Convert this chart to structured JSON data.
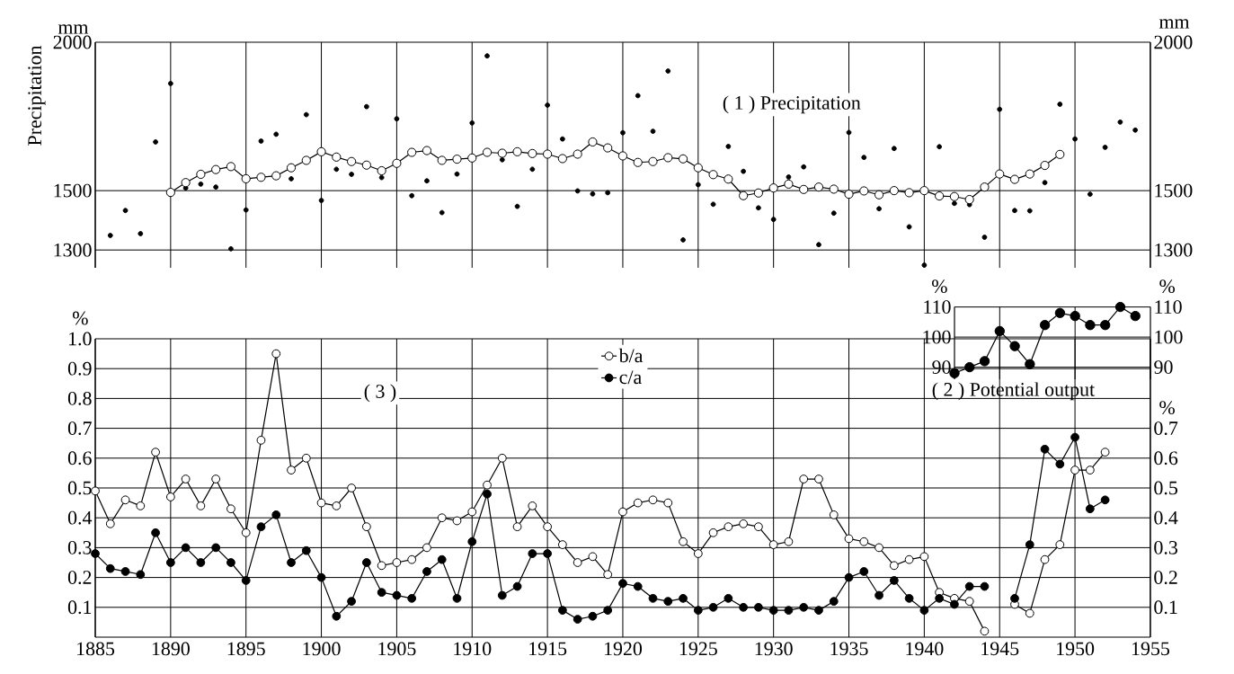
{
  "chart_data": [
    {
      "type": "line",
      "title": "( 1 ) Precipitation",
      "ylabel": "Precipitation",
      "y2label": "mm",
      "annotations": [
        "mm"
      ],
      "xlim": [
        1885,
        1955
      ],
      "xticks": [
        1885,
        1890,
        1895,
        1900,
        1905,
        1910,
        1915,
        1920,
        1925,
        1930,
        1935,
        1940,
        1945,
        1950,
        1955
      ],
      "ylim": [
        1240,
        2000
      ],
      "yticks": [
        1300,
        1500,
        2000
      ],
      "y2lim": [
        1240,
        2000
      ],
      "y2ticks": [
        1300,
        1500,
        2000
      ],
      "grid": true,
      "tick_labels": "y",
      "marker": "circle",
      "series": [
        {
          "type": "scatter",
          "color": "#000000",
          "x": [
            1886,
            1887,
            1888,
            1889,
            1890,
            1891,
            1892,
            1893,
            1894,
            1895,
            1896,
            1897,
            1898,
            1899,
            1900,
            1901,
            1902,
            1903,
            1904,
            1905,
            1906,
            1907,
            1908,
            1909,
            1910,
            1911,
            1912,
            1913,
            1914,
            1915,
            1916,
            1917,
            1918,
            1919,
            1920,
            1921,
            1922,
            1923,
            1924,
            1925,
            1926,
            1927,
            1928,
            1929,
            1930,
            1931,
            1932,
            1933,
            1934,
            1935,
            1936,
            1937,
            1938,
            1939,
            1940,
            1941,
            1942,
            1943,
            1944,
            1945,
            1946,
            1947,
            1948,
            1949,
            1950,
            1951,
            1952,
            1953,
            1954
          ],
          "values": [
            1349,
            1433,
            1355,
            1664,
            1861,
            1509,
            1522,
            1512,
            1304,
            1435,
            1667,
            1690,
            1540,
            1756,
            1467,
            1572,
            1555,
            1783,
            1544,
            1742,
            1483,
            1533,
            1426,
            1556,
            1728,
            1954,
            1604,
            1447,
            1572,
            1788,
            1674,
            1499,
            1489,
            1493,
            1695,
            1820,
            1700,
            1903,
            1334,
            1520,
            1454,
            1649,
            1565,
            1442,
            1403,
            1546,
            1580,
            1318,
            1424,
            1696,
            1612,
            1439,
            1642,
            1378,
            1249,
            1648,
            1457,
            1453,
            1343,
            1774,
            1433,
            1432,
            1527,
            1791,
            1674,
            1488,
            1646,
            1731,
            1704
          ]
        },
        {
          "type": "line",
          "color": "#000000",
          "x": [
            1890,
            1891,
            1892,
            1893,
            1894,
            1895,
            1896,
            1897,
            1898,
            1899,
            1900,
            1901,
            1902,
            1903,
            1904,
            1905,
            1906,
            1907,
            1908,
            1909,
            1910,
            1911,
            1912,
            1913,
            1914,
            1915,
            1916,
            1917,
            1918,
            1919,
            1920,
            1921,
            1922,
            1923,
            1924,
            1925,
            1926,
            1927,
            1928,
            1929,
            1930,
            1931,
            1932,
            1933,
            1934,
            1935,
            1936,
            1937,
            1938,
            1939,
            1940,
            1941,
            1942,
            1943,
            1944,
            1945,
            1946,
            1947,
            1948,
            1949
          ],
          "values": [
            1494,
            1527,
            1555,
            1571,
            1581,
            1540,
            1545,
            1550,
            1577,
            1602,
            1631,
            1613,
            1598,
            1586,
            1567,
            1592,
            1629,
            1635,
            1602,
            1606,
            1610,
            1629,
            1626,
            1631,
            1625,
            1623,
            1608,
            1623,
            1664,
            1644,
            1617,
            1595,
            1598,
            1611,
            1607,
            1577,
            1554,
            1539,
            1483,
            1492,
            1509,
            1522,
            1504,
            1512,
            1505,
            1488,
            1499,
            1486,
            1500,
            1493,
            1500,
            1482,
            1480,
            1470,
            1512,
            1556,
            1538,
            1556,
            1585,
            1622
          ]
        }
      ]
    },
    {
      "type": "line",
      "title": "( 2 ) Potential output",
      "ylabel": "%",
      "y2label": "%",
      "xlim": [
        1942,
        1955
      ],
      "xticks": [
        1945,
        1950
      ],
      "ylim": [
        86,
        110
      ],
      "yticks": [
        90,
        100,
        110
      ],
      "y2lim": [
        86,
        110
      ],
      "y2ticks": [
        90,
        100,
        110
      ],
      "grid": true,
      "tick_labels": "y",
      "marker": "circle",
      "series": [
        {
          "color": "#000000",
          "x": [
            1942,
            1943,
            1944,
            1945,
            1946,
            1947,
            1948,
            1949,
            1950,
            1951,
            1952,
            1953,
            1954
          ],
          "values": [
            88,
            90,
            92,
            102,
            97,
            91,
            104,
            108,
            107,
            104,
            104,
            110,
            107
          ]
        }
      ]
    },
    {
      "type": "line",
      "title": "( 3 )",
      "ylabel": "%",
      "y2label": "%",
      "xlim": [
        1885,
        1955
      ],
      "xticks": [
        1885,
        1890,
        1895,
        1900,
        1905,
        1910,
        1915,
        1920,
        1925,
        1930,
        1935,
        1940,
        1945,
        1950,
        1955
      ],
      "ylim": [
        0,
        1.0
      ],
      "yticks": [
        0.1,
        0.2,
        0.3,
        0.4,
        0.5,
        0.6,
        0.7,
        0.8,
        0.9,
        {
          "value": 1.0,
          "label": "1.0"
        }
      ],
      "y2lim": [
        0,
        1.0
      ],
      "y2ticks": [
        0.1,
        0.2,
        0.3,
        0.4,
        0.5,
        0.6,
        0.7
      ],
      "grid": true,
      "legend": "top",
      "marker": "circle",
      "x": [
        1885,
        1886,
        1887,
        1888,
        1889,
        1890,
        1891,
        1892,
        1893,
        1894,
        1895,
        1896,
        1897,
        1898,
        1899,
        1900,
        1901,
        1902,
        1903,
        1904,
        1905,
        1906,
        1907,
        1908,
        1909,
        1910,
        1911,
        1912,
        1913,
        1914,
        1915,
        1916,
        1917,
        1918,
        1919,
        1920,
        1921,
        1922,
        1923,
        1924,
        1925,
        1926,
        1927,
        1928,
        1929,
        1930,
        1931,
        1932,
        1933,
        1934,
        1935,
        1936,
        1937,
        1938,
        1939,
        1940,
        1941,
        1942,
        1943,
        1944,
        1945,
        1946,
        1947,
        1948,
        1949,
        1950,
        1951,
        1952
      ],
      "series": [
        {
          "name": "b/a",
          "color": "#000000",
          "values": [
            0.49,
            0.38,
            0.46,
            0.44,
            0.62,
            0.47,
            0.53,
            0.44,
            0.53,
            0.43,
            0.35,
            0.66,
            0.95,
            0.56,
            0.6,
            0.45,
            0.44,
            0.5,
            0.37,
            0.24,
            0.25,
            0.26,
            0.3,
            0.4,
            0.39,
            0.42,
            0.51,
            0.6,
            0.37,
            0.44,
            0.37,
            0.31,
            0.25,
            0.27,
            0.21,
            0.42,
            0.45,
            0.46,
            0.45,
            0.32,
            0.28,
            0.35,
            0.37,
            0.38,
            0.37,
            0.31,
            0.32,
            0.53,
            0.53,
            0.41,
            0.33,
            0.32,
            0.3,
            0.24,
            0.26,
            0.27,
            0.15,
            0.13,
            0.12,
            0.02,
            null,
            0.11,
            0.08,
            0.26,
            0.31,
            0.56,
            0.56,
            0.62
          ]
        },
        {
          "name": "c/a",
          "color": "#000000",
          "values": [
            0.28,
            0.23,
            0.22,
            0.21,
            0.35,
            0.25,
            0.3,
            0.25,
            0.3,
            0.25,
            0.19,
            0.37,
            0.41,
            0.25,
            0.29,
            0.2,
            0.07,
            0.12,
            0.25,
            0.15,
            0.14,
            0.13,
            0.22,
            0.26,
            0.13,
            0.32,
            0.48,
            0.14,
            0.17,
            0.28,
            0.28,
            0.09,
            0.06,
            0.07,
            0.09,
            0.18,
            0.17,
            0.13,
            0.12,
            0.13,
            0.09,
            0.1,
            0.13,
            0.1,
            0.1,
            0.09,
            0.09,
            0.1,
            0.09,
            0.12,
            0.2,
            0.22,
            0.14,
            0.19,
            0.13,
            0.09,
            0.13,
            0.11,
            0.17,
            0.17,
            null,
            0.13,
            0.31,
            0.63,
            0.58,
            0.67,
            0.43,
            0.46
          ]
        }
      ]
    }
  ]
}
